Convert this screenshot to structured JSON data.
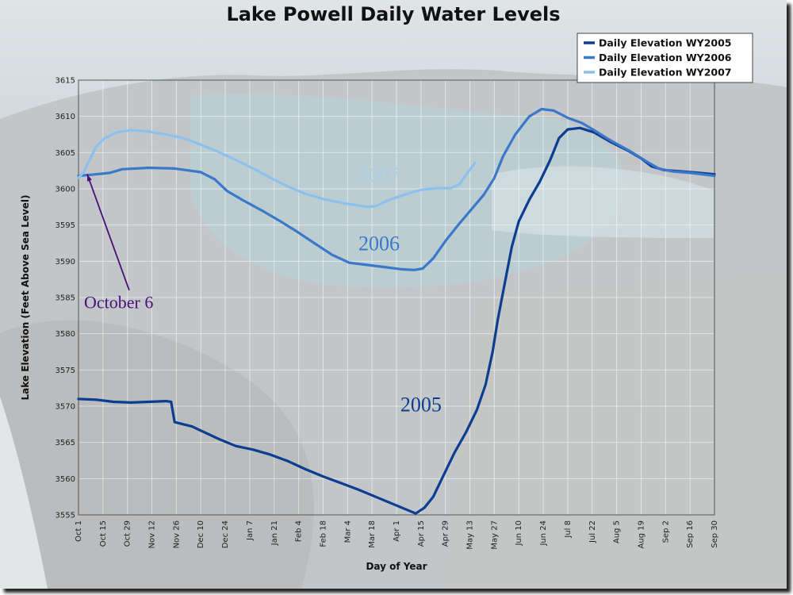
{
  "chart_data": {
    "type": "line",
    "title": "Lake Powell Daily Water Levels",
    "xlabel": "Day of Year",
    "ylabel": "Lake Elevation (Feet Above Sea Level)",
    "ylim": [
      3555,
      3615
    ],
    "yticks": [
      3555,
      3560,
      3565,
      3570,
      3575,
      3580,
      3585,
      3590,
      3595,
      3600,
      3605,
      3610,
      3615
    ],
    "xlim": [
      0,
      364
    ],
    "xticks": [
      {
        "label": "Oct 1",
        "day": 0
      },
      {
        "label": "Oct 15",
        "day": 14
      },
      {
        "label": "Oct 29",
        "day": 28
      },
      {
        "label": "Nov 12",
        "day": 42
      },
      {
        "label": "Nov 26",
        "day": 56
      },
      {
        "label": "Dec 10",
        "day": 70
      },
      {
        "label": "Dec 24",
        "day": 84
      },
      {
        "label": "Jan 7",
        "day": 98
      },
      {
        "label": "Jan 21",
        "day": 112
      },
      {
        "label": "Feb 4",
        "day": 126
      },
      {
        "label": "Feb 18",
        "day": 140
      },
      {
        "label": "Mar 4",
        "day": 154
      },
      {
        "label": "Mar 18",
        "day": 168
      },
      {
        "label": "Apr 1",
        "day": 182
      },
      {
        "label": "Apr 15",
        "day": 196
      },
      {
        "label": "Apr 29",
        "day": 210
      },
      {
        "label": "May 13",
        "day": 224
      },
      {
        "label": "May 27",
        "day": 238
      },
      {
        "label": "Jun 10",
        "day": 252
      },
      {
        "label": "Jun 24",
        "day": 266
      },
      {
        "label": "Jul 8",
        "day": 280
      },
      {
        "label": "Jul 22",
        "day": 294
      },
      {
        "label": "Aug 5",
        "day": 308
      },
      {
        "label": "Aug 19",
        "day": 322
      },
      {
        "label": "Sep 2",
        "day": 336
      },
      {
        "label": "Sep 16",
        "day": 350
      },
      {
        "label": "Sep 30",
        "day": 364
      }
    ],
    "grid": true,
    "legend_position": "top-right",
    "series": [
      {
        "name": "Daily Elevation WY2005",
        "color": "#0b3d91",
        "points": [
          [
            0,
            3571
          ],
          [
            10,
            3570.9
          ],
          [
            20,
            3570.6
          ],
          [
            30,
            3570.5
          ],
          [
            40,
            3570.6
          ],
          [
            50,
            3570.7
          ],
          [
            53,
            3570.6
          ],
          [
            55,
            3567.8
          ],
          [
            65,
            3567.2
          ],
          [
            80,
            3565.5
          ],
          [
            90,
            3564.5
          ],
          [
            100,
            3564
          ],
          [
            110,
            3563.3
          ],
          [
            120,
            3562.4
          ],
          [
            130,
            3561.3
          ],
          [
            140,
            3560.3
          ],
          [
            150,
            3559.4
          ],
          [
            160,
            3558.5
          ],
          [
            170,
            3557.5
          ],
          [
            180,
            3556.5
          ],
          [
            188,
            3555.7
          ],
          [
            193,
            3555.2
          ],
          [
            198,
            3556
          ],
          [
            203,
            3557.5
          ],
          [
            208,
            3560
          ],
          [
            215,
            3563.5
          ],
          [
            222,
            3566.5
          ],
          [
            228,
            3569.5
          ],
          [
            233,
            3573
          ],
          [
            237,
            3577.5
          ],
          [
            240,
            3582
          ],
          [
            244,
            3587
          ],
          [
            248,
            3592
          ],
          [
            252,
            3595.5
          ],
          [
            258,
            3598.5
          ],
          [
            264,
            3601
          ],
          [
            270,
            3604
          ],
          [
            275,
            3607
          ],
          [
            280,
            3608.2
          ],
          [
            287,
            3608.4
          ],
          [
            295,
            3607.8
          ],
          [
            305,
            3606.4
          ],
          [
            315,
            3605.2
          ],
          [
            322,
            3604.2
          ],
          [
            328,
            3603.1
          ],
          [
            335,
            3602.6
          ],
          [
            345,
            3602.4
          ],
          [
            355,
            3602.2
          ],
          [
            364,
            3602
          ]
        ]
      },
      {
        "name": "Daily Elevation WY2006",
        "color": "#3a78c9",
        "points": [
          [
            0,
            3601.8
          ],
          [
            10,
            3602
          ],
          [
            18,
            3602.2
          ],
          [
            25,
            3602.7
          ],
          [
            40,
            3602.9
          ],
          [
            55,
            3602.8
          ],
          [
            70,
            3602.3
          ],
          [
            78,
            3601.3
          ],
          [
            85,
            3599.7
          ],
          [
            95,
            3598.3
          ],
          [
            105,
            3597
          ],
          [
            115,
            3595.6
          ],
          [
            125,
            3594.1
          ],
          [
            135,
            3592.5
          ],
          [
            145,
            3590.9
          ],
          [
            155,
            3589.8
          ],
          [
            165,
            3589.5
          ],
          [
            175,
            3589.2
          ],
          [
            185,
            3588.9
          ],
          [
            192,
            3588.8
          ],
          [
            197,
            3589
          ],
          [
            203,
            3590.4
          ],
          [
            210,
            3592.8
          ],
          [
            218,
            3595.2
          ],
          [
            225,
            3597.2
          ],
          [
            232,
            3599.2
          ],
          [
            238,
            3601.5
          ],
          [
            243,
            3604.5
          ],
          [
            250,
            3607.5
          ],
          [
            258,
            3610
          ],
          [
            265,
            3611
          ],
          [
            272,
            3610.8
          ],
          [
            280,
            3609.8
          ],
          [
            288,
            3609.1
          ],
          [
            295,
            3608.1
          ],
          [
            305,
            3606.6
          ],
          [
            315,
            3605.3
          ],
          [
            325,
            3603.8
          ],
          [
            332,
            3602.8
          ],
          [
            340,
            3602.4
          ],
          [
            350,
            3602.2
          ],
          [
            364,
            3601.8
          ]
        ]
      },
      {
        "name": "Daily Elevation WY2007",
        "color": "#8cc1ee",
        "points": [
          [
            0,
            3601.5
          ],
          [
            3,
            3602.3
          ],
          [
            6,
            3603.8
          ],
          [
            10,
            3605.8
          ],
          [
            15,
            3607
          ],
          [
            22,
            3607.8
          ],
          [
            30,
            3608.1
          ],
          [
            40,
            3607.9
          ],
          [
            50,
            3607.5
          ],
          [
            60,
            3607
          ],
          [
            70,
            3606.1
          ],
          [
            80,
            3605.1
          ],
          [
            90,
            3604
          ],
          [
            100,
            3602.8
          ],
          [
            110,
            3601.5
          ],
          [
            120,
            3600.3
          ],
          [
            130,
            3599.3
          ],
          [
            140,
            3598.6
          ],
          [
            150,
            3598.1
          ],
          [
            160,
            3597.7
          ],
          [
            165,
            3597.5
          ],
          [
            170,
            3597.6
          ],
          [
            178,
            3598.5
          ],
          [
            188,
            3599.3
          ],
          [
            195,
            3599.8
          ],
          [
            205,
            3600.1
          ],
          [
            213,
            3600.1
          ],
          [
            218,
            3600.6
          ],
          [
            222,
            3602
          ],
          [
            227,
            3603.6
          ]
        ]
      }
    ],
    "annotations": [
      {
        "text": "2007",
        "day": 172,
        "elev": 3601,
        "color": "#a9cdeb",
        "size": 26
      },
      {
        "text": "2006",
        "day": 172,
        "elev": 3591.5,
        "color": "#3a78c9",
        "size": 26
      },
      {
        "text": "2005",
        "day": 196,
        "elev": 3569.3,
        "color": "#0d3d8f",
        "size": 26
      },
      {
        "text": "October 6",
        "day": 23,
        "elev": 3583.5,
        "color": "#4b0f7a",
        "size": 22
      }
    ],
    "arrow": {
      "from_day": 29,
      "from_elev": 3586,
      "to_day": 5,
      "to_elev": 3602,
      "color": "#4b0f7a"
    }
  }
}
